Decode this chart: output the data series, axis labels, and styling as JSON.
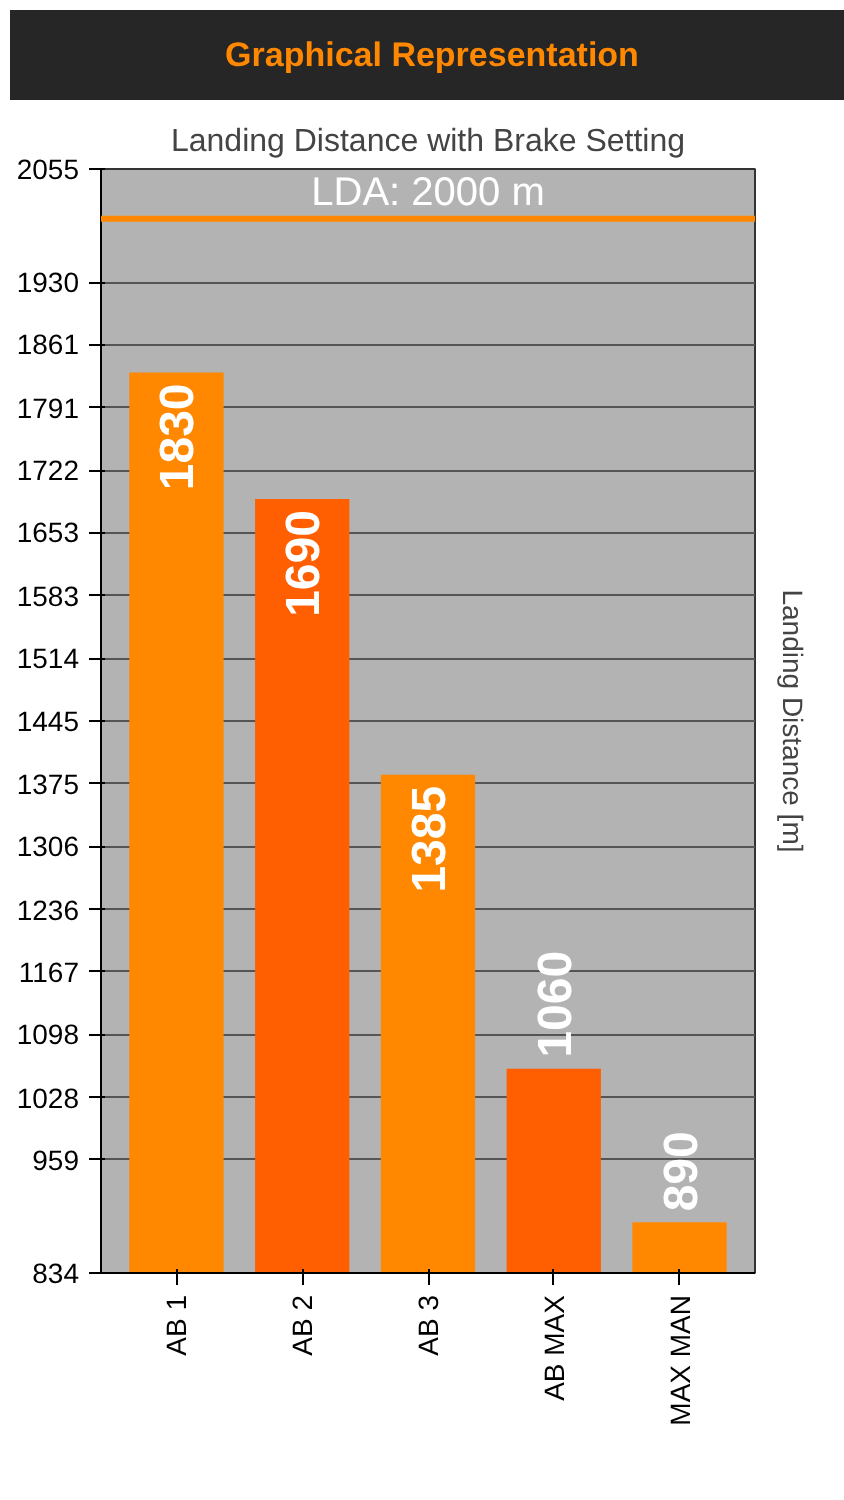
{
  "chart_data": {
    "type": "bar",
    "title": "Landing Distance with Brake Setting",
    "ylabel": "Landing Distance [m]",
    "annotations": [
      "Graphical Representation"
    ],
    "categories": [
      "AB 1",
      "AB 2",
      "AB 3",
      "AB MAX",
      "MAX MAN"
    ],
    "values": [
      1830,
      1690,
      1385,
      1060,
      890
    ],
    "colors": [
      "#ff8800",
      "#ff5f00",
      "#ff8800",
      "#ff5f00",
      "#ff8800"
    ],
    "data_labels": true,
    "ylim": [
      834,
      2055
    ],
    "yticks": [
      834,
      959,
      1028,
      1098,
      1167,
      1236,
      1306,
      1375,
      1445,
      1514,
      1583,
      1653,
      1722,
      1791,
      1861,
      1930,
      2055
    ],
    "ref_lines": [
      {
        "axis": "y",
        "value": 2000,
        "label": "LDA: 2000 m",
        "color": "#ff8800"
      }
    ],
    "grid": "y"
  }
}
